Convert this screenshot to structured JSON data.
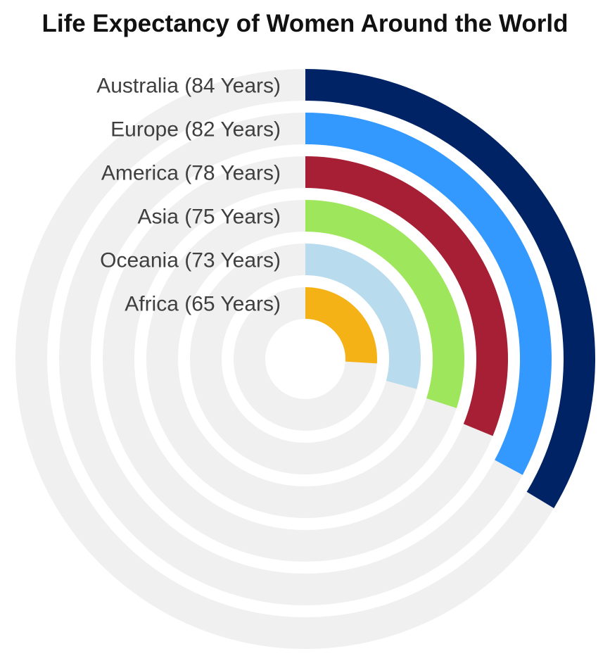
{
  "chart_data": {
    "type": "radial-bar",
    "title": "Life Expectancy of Women Around the World",
    "categories": [
      "Australia (84 Years)",
      "Europe (82 Years)",
      "America (78 Years)",
      "Asia (75 Years)",
      "Oceania (73 Years)",
      "Africa (65 Years)"
    ],
    "values": [
      84,
      82,
      78,
      75,
      73,
      65
    ],
    "max_value": 250,
    "colors": [
      "#002366",
      "#3399ff",
      "#a61f34",
      "#9ee65c",
      "#b8dcee",
      "#f5b216"
    ],
    "track_color": "#f0f0f0",
    "grid": false,
    "legend": "none"
  }
}
